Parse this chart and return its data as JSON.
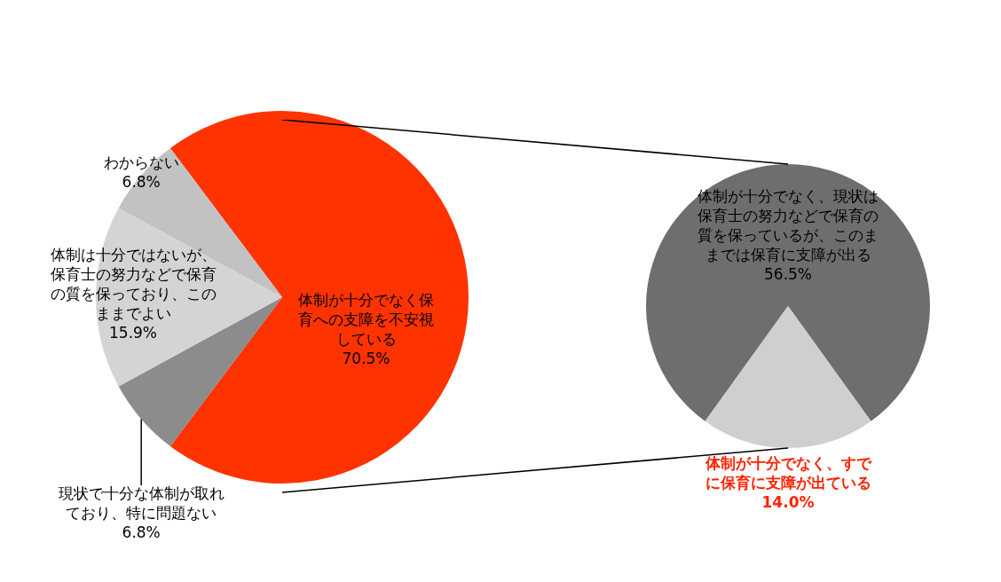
{
  "chart_data": [
    {
      "type": "pie",
      "categories": [
        "体制が十分でなく保育への支障を不安視している",
        "現状で十分な体制が取れており、特に問題ない",
        "体制は十分ではないが、保育士の努力などで保育の質を保っており、このままでよい",
        "わからない"
      ],
      "values": [
        70.5,
        6.8,
        15.9,
        6.8
      ],
      "value_labels": [
        "70.5%",
        "6.8%",
        "15.9%",
        "6.8%"
      ],
      "colors": [
        "#ff3300",
        "#8c8c8c",
        "#d4d4d4",
        "#c2c2c2"
      ]
    },
    {
      "type": "pie",
      "categories": [
        "体制が十分でなく、現状は保育士の努力などで保育の質を保っているが、このままでは保育に支障が出る",
        "体制が十分でなく、すでに保育に支障が出ている"
      ],
      "values": [
        56.5,
        14.0
      ],
      "value_labels": [
        "56.5%",
        "14.0%"
      ],
      "colors": [
        "#6e6e6e",
        "#cfcfcf"
      ]
    }
  ]
}
